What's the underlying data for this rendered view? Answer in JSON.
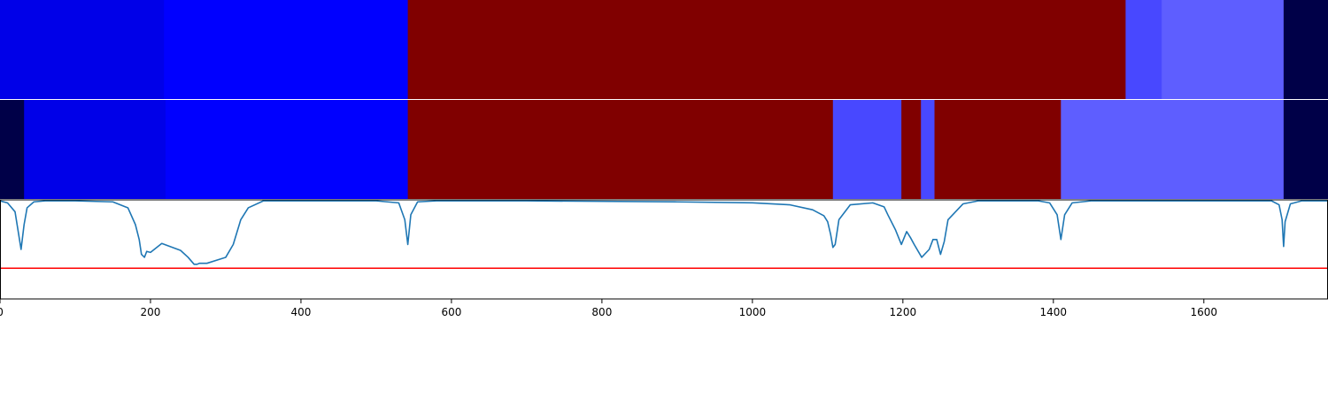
{
  "chart_data": [
    {
      "type": "heatmap",
      "panel": "top-bar",
      "segments": [
        {
          "start": 0,
          "end": 218,
          "color": "#0000e8"
        },
        {
          "start": 218,
          "end": 542,
          "color": "#0000ff"
        },
        {
          "start": 542,
          "end": 1496,
          "color": "#800000"
        },
        {
          "start": 1496,
          "end": 1544,
          "color": "#4848ff"
        },
        {
          "start": 1544,
          "end": 1706,
          "color": "#5e5eff"
        },
        {
          "start": 1706,
          "end": 1765,
          "color": "#000048"
        }
      ]
    },
    {
      "type": "heatmap",
      "panel": "middle-bar",
      "segments": [
        {
          "start": 0,
          "end": 32,
          "color": "#000048"
        },
        {
          "start": 32,
          "end": 220,
          "color": "#0000e8"
        },
        {
          "start": 220,
          "end": 542,
          "color": "#0000ff"
        },
        {
          "start": 542,
          "end": 1107,
          "color": "#800000"
        },
        {
          "start": 1107,
          "end": 1198,
          "color": "#4848ff"
        },
        {
          "start": 1198,
          "end": 1224,
          "color": "#800000"
        },
        {
          "start": 1224,
          "end": 1242,
          "color": "#4848ff"
        },
        {
          "start": 1242,
          "end": 1410,
          "color": "#800000"
        },
        {
          "start": 1410,
          "end": 1706,
          "color": "#5e5eff"
        },
        {
          "start": 1706,
          "end": 1765,
          "color": "#000048"
        }
      ]
    },
    {
      "type": "line",
      "panel": "score-plot",
      "xlim": [
        0,
        1765
      ],
      "ylim": [
        0,
        1
      ],
      "x_ticks": [
        "0",
        "200",
        "400",
        "600",
        "800",
        "1000",
        "1200",
        "1400",
        "1600"
      ],
      "x_tick_values": [
        0,
        200,
        400,
        600,
        800,
        1000,
        1200,
        1400,
        1600
      ],
      "threshold": 0.31,
      "threshold_color": "#ff0000",
      "series_color": "#1f77b4",
      "x": [
        0,
        10,
        20,
        28,
        32,
        36,
        45,
        60,
        100,
        150,
        170,
        180,
        185,
        188,
        192,
        195,
        200,
        205,
        210,
        215,
        240,
        250,
        258,
        262,
        265,
        270,
        275,
        300,
        310,
        320,
        330,
        350,
        400,
        500,
        530,
        538,
        542,
        546,
        555,
        580,
        700,
        900,
        1000,
        1050,
        1080,
        1095,
        1100,
        1104,
        1107,
        1110,
        1115,
        1130,
        1160,
        1175,
        1180,
        1190,
        1198,
        1205,
        1210,
        1215,
        1225,
        1235,
        1240,
        1245,
        1250,
        1255,
        1260,
        1280,
        1300,
        1380,
        1395,
        1405,
        1410,
        1415,
        1425,
        1450,
        1690,
        1700,
        1704,
        1706,
        1708,
        1715,
        1730,
        1765
      ],
      "y": [
        0.99,
        0.97,
        0.88,
        0.5,
        0.75,
        0.92,
        0.98,
        0.99,
        0.99,
        0.98,
        0.92,
        0.75,
        0.6,
        0.45,
        0.42,
        0.48,
        0.47,
        0.5,
        0.53,
        0.56,
        0.49,
        0.42,
        0.35,
        0.35,
        0.36,
        0.36,
        0.36,
        0.42,
        0.55,
        0.8,
        0.92,
        0.99,
        0.99,
        0.99,
        0.97,
        0.8,
        0.55,
        0.85,
        0.98,
        0.99,
        0.99,
        0.98,
        0.97,
        0.95,
        0.9,
        0.84,
        0.78,
        0.65,
        0.52,
        0.55,
        0.8,
        0.95,
        0.97,
        0.93,
        0.85,
        0.7,
        0.55,
        0.68,
        0.62,
        0.55,
        0.42,
        0.5,
        0.6,
        0.6,
        0.45,
        0.58,
        0.8,
        0.96,
        0.99,
        0.99,
        0.97,
        0.85,
        0.6,
        0.85,
        0.97,
        0.99,
        0.99,
        0.95,
        0.8,
        0.53,
        0.78,
        0.96,
        0.99,
        0.99
      ]
    }
  ]
}
